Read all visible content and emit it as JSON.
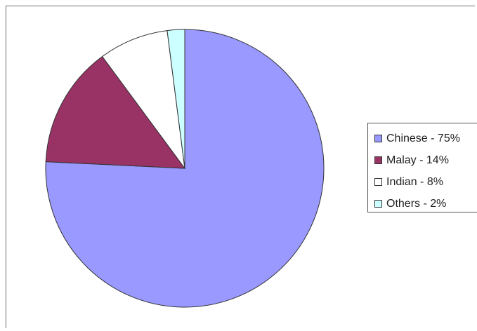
{
  "chart_data": {
    "type": "pie",
    "title": "",
    "categories": [
      "Chinese",
      "Malay",
      "Indian",
      "Others"
    ],
    "values": [
      75,
      14,
      8,
      2
    ],
    "colors": [
      "#9999ff",
      "#993366",
      "#ffffff",
      "#ccffff"
    ],
    "start_angle_deg": 0,
    "direction": "clockwise",
    "legend": {
      "position": "right",
      "entries": [
        {
          "label": "Chinese - 75%",
          "color": "#9999ff"
        },
        {
          "label": "Malay - 14%",
          "color": "#993366"
        },
        {
          "label": "Indian - 8%",
          "color": "#ffffff"
        },
        {
          "label": "Others - 2%",
          "color": "#ccffff"
        }
      ]
    }
  }
}
